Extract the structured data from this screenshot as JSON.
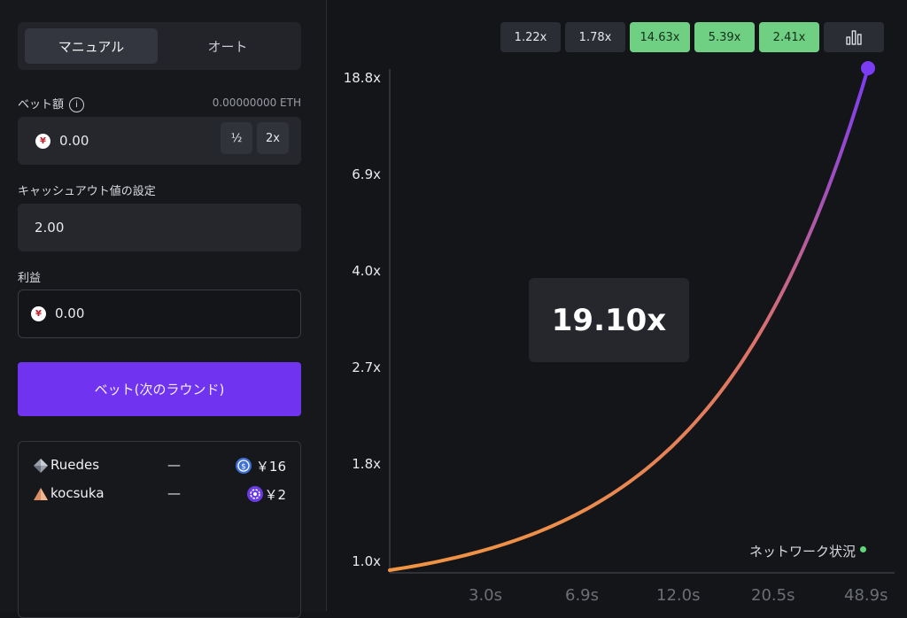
{
  "mode_tabs": {
    "manual": "マニュアル",
    "auto": "オート"
  },
  "bet": {
    "label": "ベット額",
    "balance": "0.00000000 ETH",
    "currency_icon": "yen-coin-icon",
    "amount": "0.00",
    "half_label": "½",
    "double_label": "2x"
  },
  "cashout": {
    "label": "キャッシュアウト値の設定",
    "value": "2.00"
  },
  "profit": {
    "label": "利益",
    "value": "0.00"
  },
  "bet_button": "ベット(次のラウンド)",
  "players": [
    {
      "icon": "diamond-rank-icon",
      "name": "Ruedes",
      "status": "—",
      "coin_icon": "usdc-coin-icon",
      "amount": "￥16"
    },
    {
      "icon": "bronze-rank-icon",
      "name": "kocsuka",
      "status": "—",
      "coin_icon": "chip-coin-icon",
      "amount": "￥2"
    }
  ],
  "history": [
    "1.22x",
    "1.78x",
    "14.63x",
    "5.39x",
    "2.41x"
  ],
  "history_green": [
    false,
    false,
    true,
    true,
    true
  ],
  "stats_icon": "bar-chart-icon",
  "current_multiplier": "19.10x",
  "network_status": "ネットワーク状況",
  "colors": {
    "accent": "#7034f1",
    "green": "#6fd084",
    "curve_start": "#f19443",
    "curve_end": "#7a3cf5"
  },
  "chart_data": {
    "type": "line",
    "y_tick_labels": [
      "1.0x",
      "1.8x",
      "2.7x",
      "4.0x",
      "6.9x",
      "18.8x"
    ],
    "x_tick_labels": [
      "3.0s",
      "6.9s",
      "12.0s",
      "20.5s",
      "48.9s"
    ],
    "series": [
      {
        "x_end_seconds": 48.9,
        "y_end_multiplier": 19.1
      }
    ]
  }
}
